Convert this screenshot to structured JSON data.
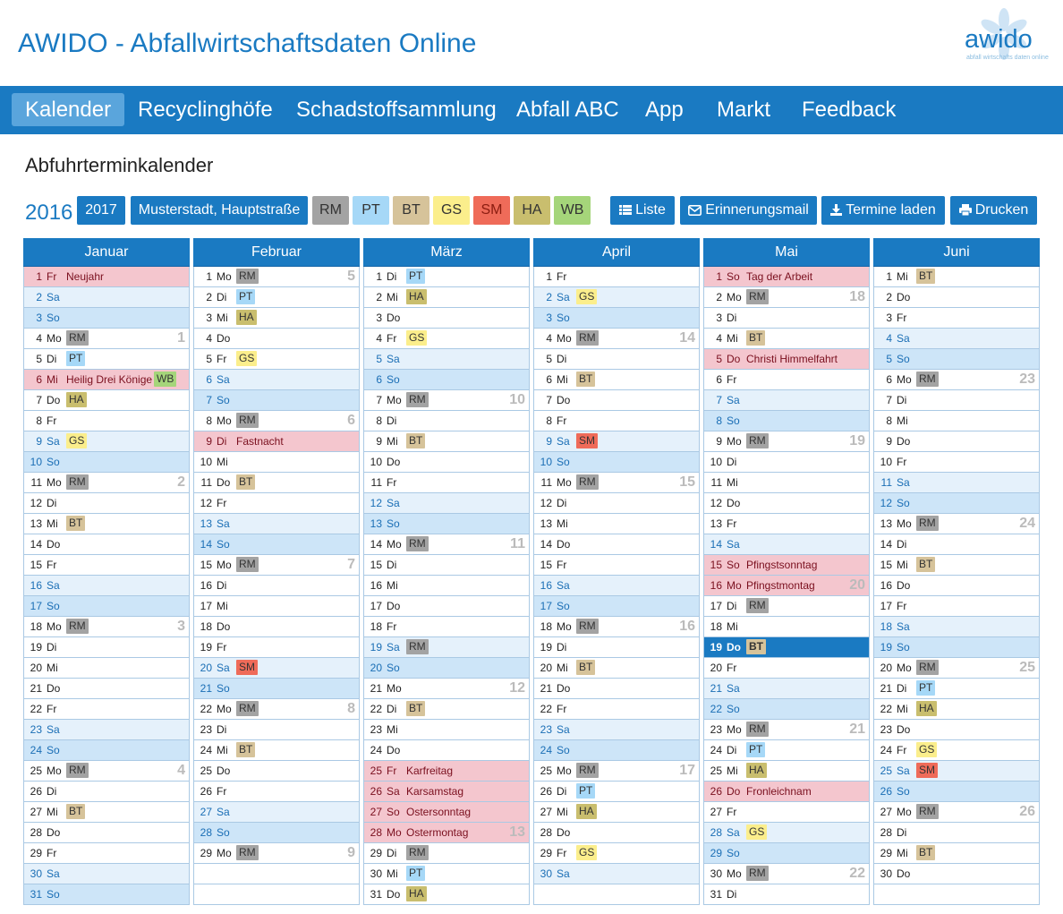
{
  "app_title": "AWIDO - Abfallwirtschaftsdaten Online",
  "logo": {
    "text": "awido",
    "subtitle": "abfall wirtschafts daten online"
  },
  "nav": [
    "Kalender",
    "Recyclinghöfe",
    "Schadstoffsammlung",
    "Abfall ABC",
    "App",
    "Markt",
    "Feedback"
  ],
  "nav_active": "Kalender",
  "page_title": "Abfuhrterminkalender",
  "toolbar": {
    "year": "2016",
    "next_year": "2017",
    "location": "Musterstadt, Hauptstraße",
    "liste": "Liste",
    "mail": "Erinnerungsmail",
    "download": "Termine laden",
    "print": "Drucken"
  },
  "waste_types": [
    {
      "code": "RM",
      "color": "#a3a3a3"
    },
    {
      "code": "PT",
      "color": "#a6d8f7"
    },
    {
      "code": "BT",
      "color": "#d6c39a"
    },
    {
      "code": "GS",
      "color": "#fbee8c"
    },
    {
      "code": "SM",
      "color": "#ef6b59"
    },
    {
      "code": "HA",
      "color": "#c9be6e"
    },
    {
      "code": "WB",
      "color": "#a5d57a"
    }
  ],
  "colors": {
    "primary": "#1a7ac2",
    "holiday": "#f4c6ce",
    "saturday": "#e5f1fb",
    "sunday": "#cde5f8"
  },
  "months": [
    {
      "name": "Januar",
      "days": [
        "1|Fr||Neujahr|",
        "2|Sa|||",
        "3|So|||",
        "4|Mo|RM||1",
        "5|Di|PT||",
        "6|Mi|WB|Heilig Drei Könige|",
        "7|Do|HA||",
        "8|Fr|||",
        "9|Sa|GS||",
        "10|So|||",
        "11|Mo|RM||2",
        "12|Di|||",
        "13|Mi|BT||",
        "14|Do|||",
        "15|Fr|||",
        "16|Sa|||",
        "17|So|||",
        "18|Mo|RM||3",
        "19|Di|||",
        "20|Mi|||",
        "21|Do|||",
        "22|Fr|||",
        "23|Sa|||",
        "24|So|||",
        "25|Mo|RM||4",
        "26|Di|||",
        "27|Mi|BT||",
        "28|Do|||",
        "29|Fr|||",
        "30|Sa|||",
        "31|So|||"
      ]
    },
    {
      "name": "Februar",
      "days": [
        "1|Mo|RM||5",
        "2|Di|PT||",
        "3|Mi|HA||",
        "4|Do|||",
        "5|Fr|GS||",
        "6|Sa|||",
        "7|So|||",
        "8|Mo|RM||6",
        "9|Di||Fastnacht|",
        "10|Mi|||",
        "11|Do|BT||",
        "12|Fr|||",
        "13|Sa|||",
        "14|So|||",
        "15|Mo|RM||7",
        "16|Di|||",
        "17|Mi|||",
        "18|Do|||",
        "19|Fr|||",
        "20|Sa|SM||",
        "21|So|||",
        "22|Mo|RM||8",
        "23|Di|||",
        "24|Mi|BT||",
        "25|Do|||",
        "26|Fr|||",
        "27|Sa|||",
        "28|So|||",
        "29|Mo|RM||9"
      ]
    },
    {
      "name": "März",
      "days": [
        "1|Di|PT||",
        "2|Mi|HA||",
        "3|Do|||",
        "4|Fr|GS||",
        "5|Sa|||",
        "6|So|||",
        "7|Mo|RM||10",
        "8|Di|||",
        "9|Mi|BT||",
        "10|Do|||",
        "11|Fr|||",
        "12|Sa|||",
        "13|So|||",
        "14|Mo|RM||11",
        "15|Di|||",
        "16|Mi|||",
        "17|Do|||",
        "18|Fr|||",
        "19|Sa|RM||",
        "20|So|||",
        "21|Mo|||12",
        "22|Di|BT||",
        "23|Mi|||",
        "24|Do|||",
        "25|Fr||Karfreitag|",
        "26|Sa||Karsamstag|",
        "27|So||Ostersonntag|",
        "28|Mo||Ostermontag|13",
        "29|Di|RM||",
        "30|Mi|PT||",
        "31|Do|HA||"
      ]
    },
    {
      "name": "April",
      "days": [
        "1|Fr|||",
        "2|Sa|GS||",
        "3|So|||",
        "4|Mo|RM||14",
        "5|Di|||",
        "6|Mi|BT||",
        "7|Do|||",
        "8|Fr|||",
        "9|Sa|SM||",
        "10|So|||",
        "11|Mo|RM||15",
        "12|Di|||",
        "13|Mi|||",
        "14|Do|||",
        "15|Fr|||",
        "16|Sa|||",
        "17|So|||",
        "18|Mo|RM||16",
        "19|Di|||",
        "20|Mi|BT||",
        "21|Do|||",
        "22|Fr|||",
        "23|Sa|||",
        "24|So|||",
        "25|Mo|RM||17",
        "26|Di|PT||",
        "27|Mi|HA||",
        "28|Do|||",
        "29|Fr|GS||",
        "30|Sa|||"
      ]
    },
    {
      "name": "Mai",
      "days": [
        "1|So||Tag der Arbeit|",
        "2|Mo|RM||18",
        "3|Di|||",
        "4|Mi|BT||",
        "5|Do||Christi Himmelfahrt|",
        "6|Fr|||",
        "7|Sa|||",
        "8|So|||",
        "9|Mo|RM||19",
        "10|Di|||",
        "11|Mi|||",
        "12|Do|||",
        "13|Fr|||",
        "14|Sa|||",
        "15|So||Pfingstsonntag|",
        "16|Mo||Pfingstmontag|20",
        "17|Di|RM||",
        "18|Mi|||",
        "19|Do|BT||",
        "20|Fr|||",
        "21|Sa|||",
        "22|So|||",
        "23|Mo|RM||21",
        "24|Di|PT||",
        "25|Mi|HA||",
        "26|Do||Fronleichnam|",
        "27|Fr|||",
        "28|Sa|GS||",
        "29|So|||",
        "30|Mo|RM||22",
        "31|Di|||"
      ]
    },
    {
      "name": "Juni",
      "days": [
        "1|Mi|BT||",
        "2|Do|||",
        "3|Fr|||",
        "4|Sa|||",
        "5|So|||",
        "6|Mo|RM||23",
        "7|Di|||",
        "8|Mi|||",
        "9|Do|||",
        "10|Fr|||",
        "11|Sa|||",
        "12|So|||",
        "13|Mo|RM||24",
        "14|Di|||",
        "15|Mi|BT||",
        "16|Do|||",
        "17|Fr|||",
        "18|Sa|||",
        "19|So|||",
        "20|Mo|RM||25",
        "21|Di|PT||",
        "22|Mi|HA||",
        "23|Do|||",
        "24|Fr|GS||",
        "25|Sa|SM||",
        "26|So|||",
        "27|Mo|RM||26",
        "28|Di|||",
        "29|Mi|BT||",
        "30|Do|||"
      ]
    }
  ],
  "today": {
    "month": 4,
    "day": 19
  }
}
